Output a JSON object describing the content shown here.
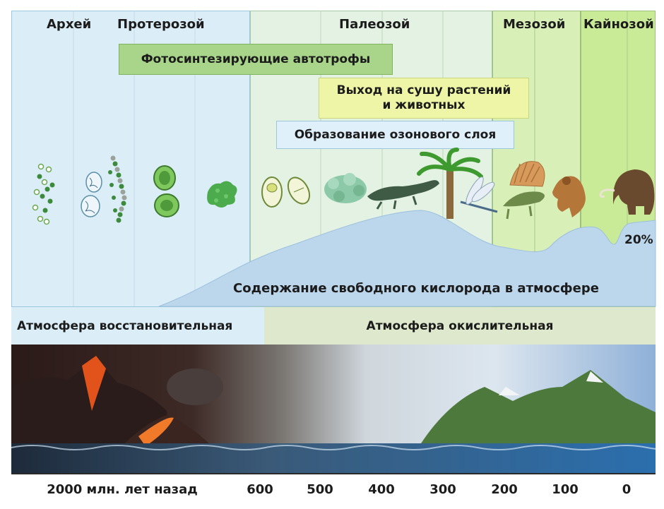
{
  "eras": [
    {
      "name": "Архей",
      "color": "#dbeef8"
    },
    {
      "name": "Протерозой",
      "color": "#dbeef8"
    },
    {
      "name": "Палеозой",
      "color": "#e3f2e3"
    },
    {
      "name": "Мезозой",
      "color": "#d8efb8"
    },
    {
      "name": "Кайнозой",
      "color": "#c9ea97"
    }
  ],
  "events": {
    "photosynthesis": "Фотосинтезирующие автотрофы",
    "land_exit": "Выход на сушу растений и животных",
    "ozone": "Образование озонового слоя"
  },
  "oxygen": {
    "label": "Содержание свободного кислорода в атмосфере",
    "current_value": "20%",
    "fill_color": "#bcd6ec"
  },
  "atmosphere": {
    "reducing": "Атмосфера восстановительная",
    "oxidizing": "Атмосфера окислительная"
  },
  "axis": {
    "ticks": [
      "2000 млн. лет назад",
      "600",
      "500",
      "400",
      "300",
      "200",
      "100",
      "0"
    ]
  },
  "organisms": [
    "cyanobacteria",
    "bacteria",
    "filamentous-algae",
    "unicellular-algae",
    "colonial-alga",
    "protists",
    "lichen",
    "amphibian",
    "tree-fern",
    "dragonfly",
    "dimetrodon",
    "sabertooth",
    "mammoth"
  ]
}
